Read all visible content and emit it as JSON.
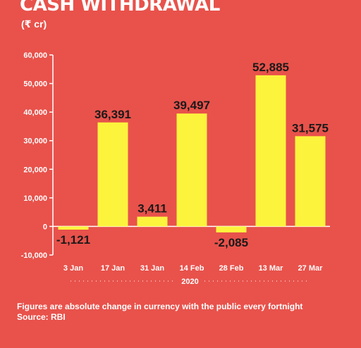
{
  "title": "CASH WITHDRAWAL",
  "unit": "(₹ cr)",
  "footnote": "Figures are absolute change in currency with the public every fortnight",
  "source": "Source: RBI",
  "colors": {
    "background": "#e8524b",
    "bar": "#fcf33d",
    "text": "#ffffff",
    "label": "#1a1a1a",
    "axis": "#ffffff"
  },
  "chart_data": {
    "type": "bar",
    "categories": [
      "3 Jan",
      "17 Jan",
      "31 Jan",
      "14 Feb",
      "28 Feb",
      "13 Mar",
      "27 Mar"
    ],
    "values": [
      -1121,
      36391,
      3411,
      39497,
      -2085,
      52885,
      31575
    ],
    "data_labels": [
      "-1,121",
      "36,391",
      "3,411",
      "39,497",
      "-2,085",
      "52,885",
      "31,575"
    ],
    "y_ticks": [
      -10000,
      0,
      10000,
      20000,
      30000,
      40000,
      50000,
      60000
    ],
    "y_tick_labels": [
      "-10,000",
      "0",
      "10,000",
      "20,000",
      "30,000",
      "40,000",
      "50,000",
      "60,000"
    ],
    "ylim": [
      -10000,
      60000
    ],
    "group_label": "2020",
    "title": "CASH WITHDRAWAL",
    "xlabel": "",
    "ylabel": "",
    "grid": false
  }
}
